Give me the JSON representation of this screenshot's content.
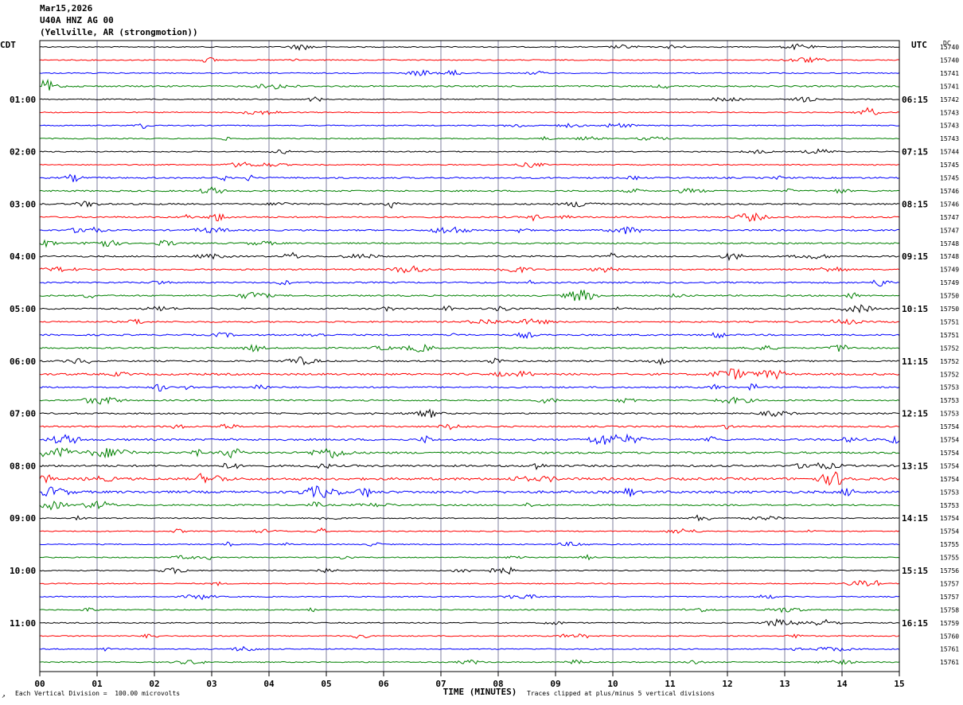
{
  "header": {
    "date": "Mar15,2026",
    "station": "U40A HNZ AG 00",
    "location": "(Yellville, AR (strongmotion))"
  },
  "labels": {
    "left_tz": "CDT",
    "right_tz": "UTC",
    "dc": "DC",
    "x_axis_title": "TIME (MINUTES)",
    "scale_note": "Each Vertical Division =  100.00 microvolts",
    "clip_note": "Traces clipped at plus/minus 5 vertical divisions",
    "corner_mark": "↗"
  },
  "colors": {
    "cycle": [
      "#000000",
      "#ff0000",
      "#0000ff",
      "#008000"
    ],
    "grid": "#7f7f9f",
    "frame": "#000000"
  },
  "chart_data": {
    "type": "line",
    "title": "U40A HNZ AG 00",
    "xlabel": "TIME (MINUTES)",
    "xlim": [
      0,
      15
    ],
    "x_ticks": [
      "00",
      "01",
      "02",
      "03",
      "04",
      "05",
      "06",
      "07",
      "08",
      "09",
      "10",
      "11",
      "12",
      "13",
      "14",
      "15"
    ],
    "row_minutes": 15,
    "rows": 48,
    "left_hour_labels": [
      "01:00",
      "02:00",
      "03:00",
      "04:00",
      "05:00",
      "06:00",
      "07:00",
      "08:00",
      "09:00",
      "10:00",
      "11:00"
    ],
    "right_hour_labels": [
      "06:15",
      "07:15",
      "08:15",
      "09:15",
      "10:15",
      "11:15",
      "12:15",
      "13:15",
      "14:15",
      "15:15",
      "16:15"
    ],
    "dc_offsets": [
      "15740",
      "15740",
      "15741",
      "15741",
      "15742",
      "15743",
      "15743",
      "15743",
      "15744",
      "15745",
      "15745",
      "15746",
      "15746",
      "15747",
      "15747",
      "15748",
      "15748",
      "15749",
      "15749",
      "15750",
      "15750",
      "15751",
      "15751",
      "15752",
      "15752",
      "15752",
      "15753",
      "15753",
      "15753",
      "15754",
      "15754",
      "15754",
      "15754",
      "15754",
      "15753",
      "15753",
      "15754",
      "15754",
      "15755",
      "15755",
      "15756",
      "15757",
      "15757",
      "15758",
      "15759",
      "15760",
      "15761",
      "15761"
    ],
    "activity": [
      1,
      1,
      1,
      2,
      1,
      1,
      1,
      1,
      1,
      1,
      2,
      2,
      2,
      2,
      2,
      2,
      2,
      2,
      2,
      2,
      2,
      2,
      2,
      2,
      2,
      3,
      2,
      2,
      2,
      2,
      3,
      3,
      3,
      4,
      4,
      2,
      1,
      1,
      1,
      1,
      1,
      1,
      1,
      1,
      1,
      1,
      1,
      1
    ],
    "amplitude_unit": "microvolts per vertical division",
    "amplitude_scale": 100.0,
    "clip_divisions": 5
  }
}
